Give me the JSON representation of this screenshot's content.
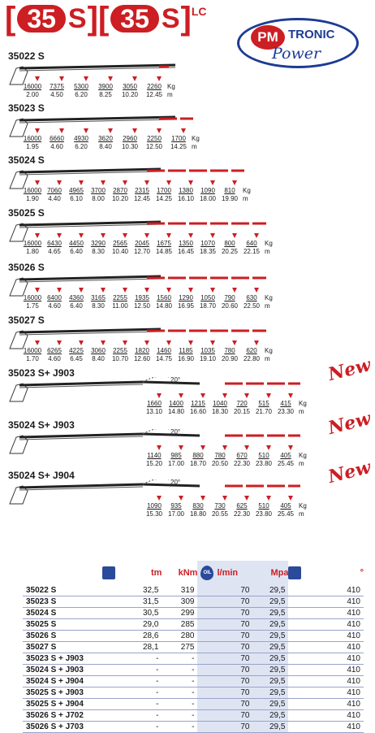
{
  "brand": {
    "number": "35",
    "suffix": "S",
    "suffix2": "LC",
    "logo_pm": "PM",
    "logo_tronic": "TRONIC",
    "logo_power": "Power"
  },
  "colors": {
    "red": "#cc1e23",
    "blue": "#1d3b94",
    "tint": "#dfe4f3"
  },
  "units": {
    "kg": "Kg",
    "m": "m"
  },
  "angle_label": "20°",
  "new_label": "New",
  "sections": [
    {
      "title": "35022 S",
      "kg": [
        "16000",
        "7375",
        "5300",
        "3900",
        "3050",
        "2260"
      ],
      "m": [
        "2.00",
        "4.50",
        "6.20",
        "8.25",
        "10.20",
        "12.45"
      ]
    },
    {
      "title": "35023 S",
      "kg": [
        "16000",
        "6660",
        "4930",
        "3620",
        "2960",
        "2250",
        "1700"
      ],
      "m": [
        "1.95",
        "4.60",
        "6.20",
        "8.40",
        "10.30",
        "12.50",
        "14.25"
      ]
    },
    {
      "title": "35024 S",
      "kg": [
        "16000",
        "7060",
        "4965",
        "3700",
        "2870",
        "2315",
        "1700",
        "1380",
        "1090",
        "810"
      ],
      "m": [
        "1.90",
        "4.40",
        "6.10",
        "8.00",
        "10.20",
        "12.45",
        "14.25",
        "16.10",
        "18.00",
        "19.90"
      ]
    },
    {
      "title": "35025 S",
      "kg": [
        "16000",
        "6430",
        "4450",
        "3290",
        "2565",
        "2045",
        "1675",
        "1350",
        "1070",
        "800",
        "640"
      ],
      "m": [
        "1.80",
        "4.65",
        "6.40",
        "8.30",
        "10.40",
        "12.70",
        "14.85",
        "16.45",
        "18.35",
        "20.25",
        "22.15"
      ]
    },
    {
      "title": "35026 S",
      "kg": [
        "16000",
        "6400",
        "4360",
        "3165",
        "2255",
        "1935",
        "1560",
        "1290",
        "1050",
        "790",
        "630"
      ],
      "m": [
        "1.75",
        "4.60",
        "6.40",
        "8.30",
        "11.00",
        "12.50",
        "14.80",
        "16.95",
        "18.70",
        "20.60",
        "22.50"
      ]
    },
    {
      "title": "35027 S",
      "kg": [
        "16000",
        "6265",
        "4225",
        "3060",
        "2255",
        "1820",
        "1460",
        "1185",
        "1035",
        "780",
        "620"
      ],
      "m": [
        "1.70",
        "4.60",
        "6.45",
        "8.40",
        "10.70",
        "12.60",
        "14.75",
        "16.90",
        "19.10",
        "20.90",
        "22.80"
      ]
    },
    {
      "title": "35023  S+  J903",
      "kg": [
        "1660",
        "1400",
        "1215",
        "1040",
        "720",
        "515",
        "415"
      ],
      "m": [
        "13.10",
        "14.80",
        "16.60",
        "18.30",
        "20.15",
        "21.70",
        "23.30"
      ]
    },
    {
      "title": "35024  S+  J903",
      "kg": [
        "1140",
        "985",
        "880",
        "780",
        "670",
        "510",
        "405"
      ],
      "m": [
        "15.20",
        "17.00",
        "18.70",
        "20.50",
        "22.30",
        "23.80",
        "25.45"
      ]
    },
    {
      "title": "35024  S+  J904",
      "kg": [
        "1090",
        "935",
        "830",
        "730",
        "625",
        "510",
        "405"
      ],
      "m": [
        "15.30",
        "17.00",
        "18.80",
        "20.55",
        "22.30",
        "23.80",
        "25.45"
      ]
    }
  ],
  "table": {
    "headers": {
      "tm": "tm",
      "knm": "kNm",
      "lmin": "l/min",
      "mpa": "Mpa",
      "deg": "°",
      "oil": "OIL"
    },
    "rows": [
      {
        "model": "35022 S",
        "tm": "32,5",
        "knm": "319",
        "lmin": "70",
        "mpa": "29,5",
        "deg": "410"
      },
      {
        "model": "35023 S",
        "tm": "31,5",
        "knm": "309",
        "lmin": "70",
        "mpa": "29,5",
        "deg": "410"
      },
      {
        "model": "35024 S",
        "tm": "30,5",
        "knm": "299",
        "lmin": "70",
        "mpa": "29,5",
        "deg": "410"
      },
      {
        "model": "35025 S",
        "tm": "29,0",
        "knm": "285",
        "lmin": "70",
        "mpa": "29,5",
        "deg": "410"
      },
      {
        "model": "35026 S",
        "tm": "28,6",
        "knm": "280",
        "lmin": "70",
        "mpa": "29,5",
        "deg": "410"
      },
      {
        "model": "35027 S",
        "tm": "28,1",
        "knm": "275",
        "lmin": "70",
        "mpa": "29,5",
        "deg": "410"
      },
      {
        "model": "35023 S + J903",
        "tm": "-",
        "knm": "-",
        "lmin": "70",
        "mpa": "29,5",
        "deg": "410"
      },
      {
        "model": "35024 S + J903",
        "tm": "-",
        "knm": "-",
        "lmin": "70",
        "mpa": "29,5",
        "deg": "410"
      },
      {
        "model": "35024 S + J904",
        "tm": "-",
        "knm": "-",
        "lmin": "70",
        "mpa": "29,5",
        "deg": "410"
      },
      {
        "model": "35025 S + J903",
        "tm": "-",
        "knm": "-",
        "lmin": "70",
        "mpa": "29,5",
        "deg": "410"
      },
      {
        "model": "35025 S + J904",
        "tm": "-",
        "knm": "-",
        "lmin": "70",
        "mpa": "29,5",
        "deg": "410"
      },
      {
        "model": "35026 S + J702",
        "tm": "-",
        "knm": "-",
        "lmin": "70",
        "mpa": "29,5",
        "deg": "410"
      },
      {
        "model": "35026 S + J703",
        "tm": "-",
        "knm": "-",
        "lmin": "70",
        "mpa": "29,5",
        "deg": "410"
      }
    ]
  }
}
